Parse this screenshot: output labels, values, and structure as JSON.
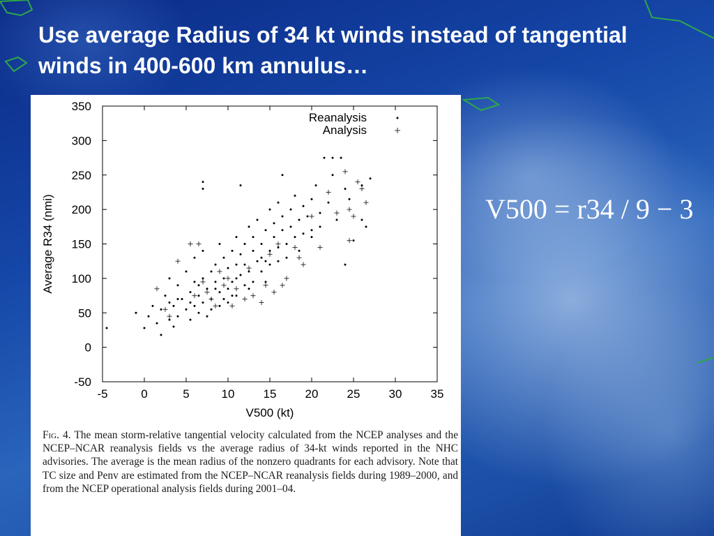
{
  "slide": {
    "title": "Use average Radius of 34 kt winds instead of tangential winds in 400-600 km annulus…",
    "formula": "V500 = r34 / 9 − 3"
  },
  "figure": {
    "caption_label": "Fig. 4.",
    "caption_text": "The mean storm-relative tangential velocity calculated from the NCEP analyses and the NCEP–NCAR reanalysis fields vs the average radius of 34-kt winds reported in the NHC advisories. The average is the mean radius of the nonzero quadrants for each advisory. Note that TC size and Penv are estimated from the NCEP–NCAR reanalysis fields during 1989–2000, and from the NCEP operational analysis fields during 2001–04."
  },
  "colors": {
    "background": "#1547a8",
    "title": "#ffffff",
    "points": "#000000"
  },
  "chart_data": {
    "type": "scatter",
    "xlabel": "V500 (kt)",
    "ylabel": "Average R34 (nmi)",
    "xlim": [
      -5,
      35
    ],
    "ylim": [
      -50,
      350
    ],
    "xticks": [
      -5,
      0,
      5,
      10,
      15,
      20,
      25,
      30,
      35
    ],
    "yticks": [
      -50,
      0,
      50,
      100,
      150,
      200,
      250,
      300,
      350
    ],
    "grid": false,
    "legend_position": "top-right",
    "series": [
      {
        "name": "Reanalysis",
        "marker": "dot",
        "points": [
          [
            -4.5,
            28
          ],
          [
            -1.0,
            50
          ],
          [
            0.0,
            28
          ],
          [
            0.5,
            45
          ],
          [
            1.0,
            60
          ],
          [
            1.5,
            35
          ],
          [
            2.0,
            18
          ],
          [
            2.0,
            55
          ],
          [
            2.5,
            75
          ],
          [
            3.0,
            40
          ],
          [
            3.0,
            100
          ],
          [
            3.5,
            60
          ],
          [
            3.5,
            30
          ],
          [
            4.0,
            90
          ],
          [
            4.0,
            45
          ],
          [
            4.5,
            70
          ],
          [
            5.0,
            55
          ],
          [
            5.0,
            110
          ],
          [
            5.5,
            40
          ],
          [
            5.5,
            80
          ],
          [
            6.0,
            95
          ],
          [
            6.0,
            60
          ],
          [
            6.0,
            130
          ],
          [
            6.5,
            75
          ],
          [
            6.5,
            50
          ],
          [
            7.0,
            100
          ],
          [
            7.0,
            65
          ],
          [
            7.0,
            140
          ],
          [
            7.5,
            85
          ],
          [
            7.5,
            45
          ],
          [
            8.0,
            110
          ],
          [
            8.0,
            70
          ],
          [
            8.0,
            55
          ],
          [
            8.5,
            95
          ],
          [
            8.5,
            120
          ],
          [
            9.0,
            80
          ],
          [
            9.0,
            60
          ],
          [
            9.0,
            150
          ],
          [
            9.5,
            100
          ],
          [
            9.5,
            130
          ],
          [
            10.0,
            85
          ],
          [
            10.0,
            115
          ],
          [
            10.0,
            65
          ],
          [
            10.5,
            140
          ],
          [
            10.5,
            95
          ],
          [
            11.0,
            120
          ],
          [
            11.0,
            75
          ],
          [
            11.0,
            160
          ],
          [
            11.5,
            105
          ],
          [
            11.5,
            135
          ],
          [
            12.0,
            90
          ],
          [
            12.0,
            150
          ],
          [
            12.0,
            120
          ],
          [
            12.5,
            175
          ],
          [
            12.5,
            110
          ],
          [
            13.0,
            140
          ],
          [
            13.0,
            95
          ],
          [
            13.0,
            160
          ],
          [
            13.5,
            125
          ],
          [
            13.5,
            185
          ],
          [
            14.0,
            150
          ],
          [
            14.0,
            110
          ],
          [
            14.0,
            130
          ],
          [
            14.5,
            170
          ],
          [
            14.5,
            95
          ],
          [
            15.0,
            140
          ],
          [
            15.0,
            200
          ],
          [
            15.0,
            120
          ],
          [
            15.5,
            160
          ],
          [
            15.5,
            180
          ],
          [
            16.0,
            145
          ],
          [
            16.0,
            125
          ],
          [
            16.0,
            210
          ],
          [
            16.5,
            170
          ],
          [
            16.5,
            190
          ],
          [
            17.0,
            150
          ],
          [
            17.0,
            130
          ],
          [
            17.5,
            200
          ],
          [
            17.5,
            175
          ],
          [
            18.0,
            160
          ],
          [
            18.0,
            220
          ],
          [
            18.5,
            185
          ],
          [
            18.5,
            140
          ],
          [
            19.0,
            205
          ],
          [
            19.0,
            165
          ],
          [
            19.5,
            190
          ],
          [
            20.0,
            215
          ],
          [
            20.0,
            170
          ],
          [
            20.5,
            235
          ],
          [
            21.0,
            195
          ],
          [
            21.0,
            175
          ],
          [
            21.5,
            275
          ],
          [
            22.0,
            210
          ],
          [
            22.5,
            250
          ],
          [
            22.5,
            275
          ],
          [
            23.0,
            185
          ],
          [
            23.5,
            275
          ],
          [
            24.0,
            230
          ],
          [
            24.0,
            120
          ],
          [
            24.5,
            215
          ],
          [
            25.0,
            155
          ],
          [
            26.0,
            235
          ],
          [
            26.0,
            185
          ],
          [
            26.5,
            175
          ],
          [
            27.0,
            245
          ],
          [
            7.0,
            230
          ],
          [
            7.0,
            240
          ],
          [
            11.5,
            235
          ],
          [
            16.5,
            250
          ],
          [
            20.0,
            160
          ],
          [
            3.0,
            65
          ],
          [
            4.0,
            70
          ],
          [
            5.5,
            65
          ],
          [
            6.5,
            90
          ],
          [
            8.5,
            85
          ],
          [
            10.5,
            75
          ],
          [
            12.5,
            85
          ],
          [
            14.5,
            125
          ],
          [
            9.5,
            70
          ],
          [
            11.0,
            100
          ]
        ]
      },
      {
        "name": "Analysis",
        "marker": "plus",
        "points": [
          [
            1.5,
            85
          ],
          [
            2.5,
            55
          ],
          [
            3.0,
            45
          ],
          [
            4.0,
            125
          ],
          [
            5.5,
            150
          ],
          [
            6.5,
            150
          ],
          [
            7.0,
            95
          ],
          [
            7.5,
            80
          ],
          [
            8.5,
            60
          ],
          [
            9.0,
            110
          ],
          [
            10.0,
            100
          ],
          [
            11.0,
            85
          ],
          [
            12.0,
            70
          ],
          [
            13.0,
            75
          ],
          [
            14.0,
            65
          ],
          [
            15.0,
            135
          ],
          [
            15.5,
            80
          ],
          [
            16.5,
            90
          ],
          [
            18.0,
            145
          ],
          [
            19.0,
            120
          ],
          [
            20.0,
            190
          ],
          [
            21.0,
            145
          ],
          [
            22.0,
            225
          ],
          [
            23.0,
            195
          ],
          [
            24.0,
            255
          ],
          [
            24.5,
            200
          ],
          [
            25.0,
            190
          ],
          [
            25.5,
            240
          ],
          [
            26.0,
            230
          ],
          [
            26.5,
            210
          ],
          [
            24.5,
            155
          ],
          [
            17.0,
            100
          ],
          [
            18.5,
            130
          ],
          [
            12.5,
            115
          ],
          [
            6.0,
            75
          ],
          [
            8.0,
            70
          ],
          [
            9.5,
            90
          ],
          [
            10.5,
            60
          ],
          [
            14.5,
            90
          ],
          [
            16.0,
            150
          ]
        ]
      }
    ]
  }
}
